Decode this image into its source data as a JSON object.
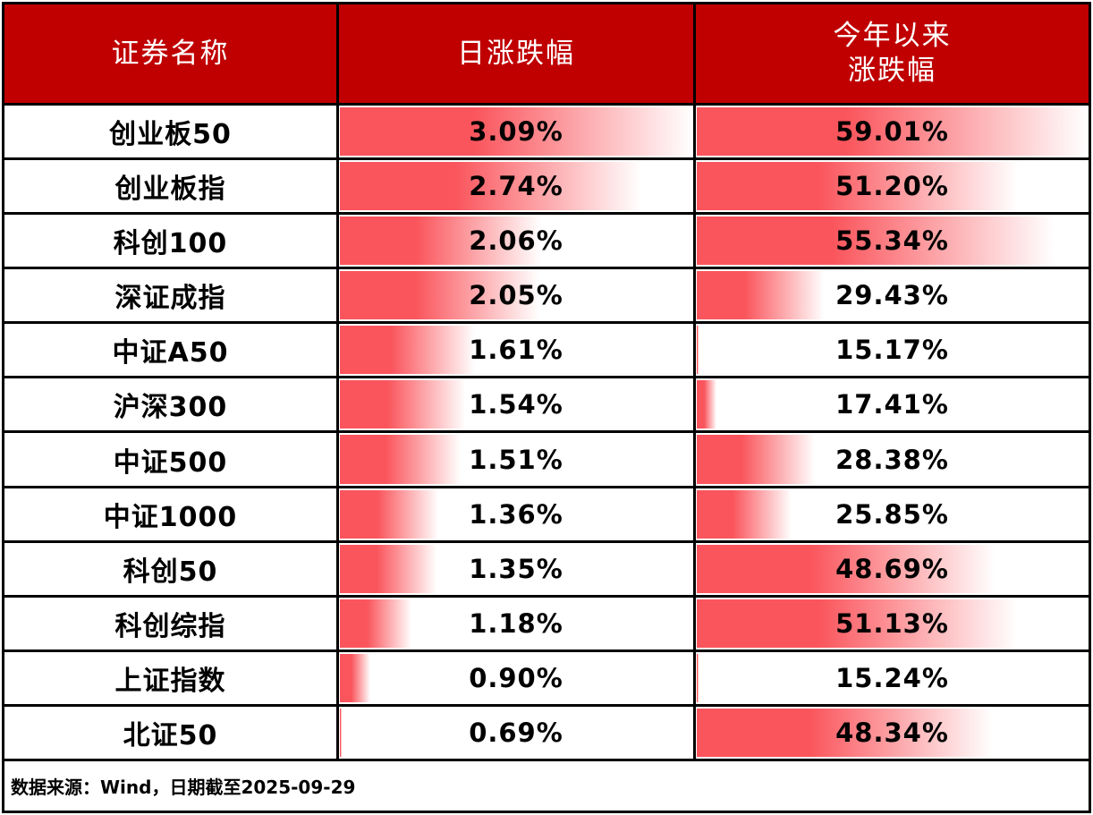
{
  "header": {
    "col1": "证券名称",
    "col2": "日涨跌幅",
    "col3_line1": "今年以来",
    "col3_line2": "涨跌幅"
  },
  "footer": {
    "note": "数据来源：Wind，日期截至2025-09-29"
  },
  "colors": {
    "header_bg": "#c00000",
    "header_text": "#ffffff",
    "bar_red": "#fa555c",
    "border": "#000000",
    "value_text": "#000000"
  },
  "chart_data": {
    "type": "table",
    "title": "",
    "columns": [
      "证券名称",
      "日涨跌幅",
      "今年以来涨跌幅"
    ],
    "databar_style": "red-gradient-left-aligned, length scaled min-to-max per column",
    "rows": [
      {
        "name": "创业板50",
        "daily_pct": 3.09,
        "ytd_pct": 59.01
      },
      {
        "name": "创业板指",
        "daily_pct": 2.74,
        "ytd_pct": 51.2
      },
      {
        "name": "科创100",
        "daily_pct": 2.06,
        "ytd_pct": 55.34
      },
      {
        "name": "深证成指",
        "daily_pct": 2.05,
        "ytd_pct": 29.43
      },
      {
        "name": "中证A50",
        "daily_pct": 1.61,
        "ytd_pct": 15.17
      },
      {
        "name": "沪深300",
        "daily_pct": 1.54,
        "ytd_pct": 17.41
      },
      {
        "name": "中证500",
        "daily_pct": 1.51,
        "ytd_pct": 28.38
      },
      {
        "name": "中证1000",
        "daily_pct": 1.36,
        "ytd_pct": 25.85
      },
      {
        "name": "科创50",
        "daily_pct": 1.35,
        "ytd_pct": 48.69
      },
      {
        "name": "科创综指",
        "daily_pct": 1.18,
        "ytd_pct": 51.13
      },
      {
        "name": "上证指数",
        "daily_pct": 0.9,
        "ytd_pct": 15.24
      },
      {
        "name": "北证50",
        "daily_pct": 0.69,
        "ytd_pct": 48.34
      }
    ]
  }
}
